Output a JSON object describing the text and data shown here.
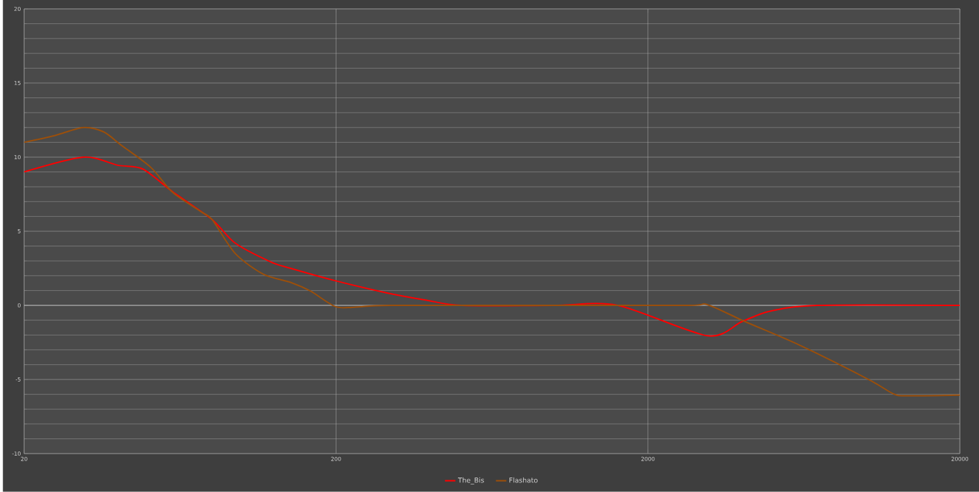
{
  "chart_data": {
    "type": "line",
    "log": "x",
    "grid": true,
    "legend": "bottom",
    "marker": "none",
    "line_style": "solid",
    "xlim": [
      20,
      20000
    ],
    "ylim": [
      -10,
      20
    ],
    "xticks": [
      20,
      200,
      2000,
      20000
    ],
    "yticks": [
      -10,
      -5,
      0,
      5,
      10,
      15,
      20
    ],
    "series": [
      {
        "name": "The_Bis",
        "color": "#ff0000",
        "x": [
          20,
          31,
          40,
          48,
          60,
          80,
          95,
          123,
          143,
          200,
          290,
          390,
          505,
          1000,
          1600,
          3100,
          4000,
          4900,
          7000,
          20000
        ],
        "values": [
          9.0,
          10.0,
          9.45,
          9.2,
          7.65,
          5.8,
          4.2,
          2.95,
          2.5,
          1.65,
          0.85,
          0.35,
          0,
          0,
          0,
          -2.05,
          -1.1,
          -0.4,
          0,
          0
        ]
      },
      {
        "name": "Flashato",
        "color": "#9c4f0a",
        "x": [
          20,
          25,
          31,
          36,
          41,
          51,
          60,
          74,
          80,
          95,
          117,
          143,
          166,
          200,
          237,
          300,
          1000,
          2700,
          3100,
          4100,
          6150,
          10200,
          12200,
          13500,
          20000
        ],
        "values": [
          11.0,
          11.45,
          12.0,
          11.7,
          10.8,
          9.3,
          7.6,
          6.3,
          5.8,
          3.5,
          2.1,
          1.55,
          0.95,
          -0.1,
          -0.1,
          0,
          0,
          0,
          0.05,
          -1.1,
          -2.7,
          -5.0,
          -5.95,
          -6.1,
          -6.05
        ]
      }
    ]
  }
}
